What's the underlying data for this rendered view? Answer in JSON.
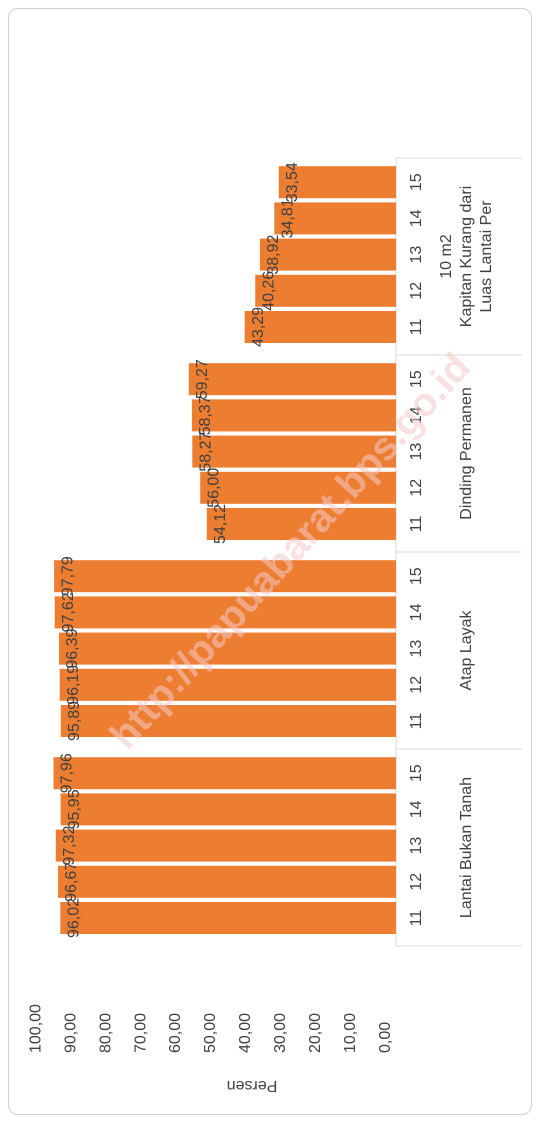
{
  "chart_data": {
    "type": "bar",
    "orientation": "rotated-180",
    "ylabel": "Persen",
    "ylim": [
      0,
      100
    ],
    "yticks": [
      "0,00",
      "10,00",
      "20,00",
      "30,00",
      "40,00",
      "50,00",
      "60,00",
      "70,00",
      "80,00",
      "90,00",
      "100,00"
    ],
    "groups": [
      {
        "name": "Lantai Bukan Tanah",
        "categories": [
          "11",
          "12",
          "13",
          "14",
          "15"
        ],
        "values": [
          96.02,
          96.67,
          97.32,
          95.95,
          97.96
        ],
        "labels": [
          "96,02",
          "96,67",
          "97,32",
          "95,95",
          "97,96"
        ]
      },
      {
        "name": "Atap Layak",
        "categories": [
          "11",
          "12",
          "13",
          "14",
          "15"
        ],
        "values": [
          95.89,
          96.19,
          96.39,
          97.62,
          97.79
        ],
        "labels": [
          "95,89",
          "96,19",
          "96,39",
          "97,62",
          "97,79"
        ]
      },
      {
        "name": "Dinding Permanen",
        "categories": [
          "11",
          "12",
          "13",
          "14",
          "15"
        ],
        "values": [
          54.12,
          56.0,
          58.27,
          58.37,
          59.27
        ],
        "labels": [
          "54,12",
          "56,00",
          "58,27",
          "58,37",
          "59,27"
        ]
      },
      {
        "name": "Luas Lantai Per Kapitan Kurang dari 10 m2",
        "categories": [
          "11",
          "12",
          "13",
          "14",
          "15"
        ],
        "values": [
          43.29,
          40.26,
          38.92,
          34.81,
          33.54
        ],
        "labels": [
          "43,29",
          "40,26",
          "38,92",
          "34,81",
          "33,54"
        ]
      }
    ],
    "bar_color": "#ED7D31",
    "grid": false,
    "legend": "none"
  },
  "watermark": {
    "text": "http://papuabarat.bps.go.id"
  }
}
